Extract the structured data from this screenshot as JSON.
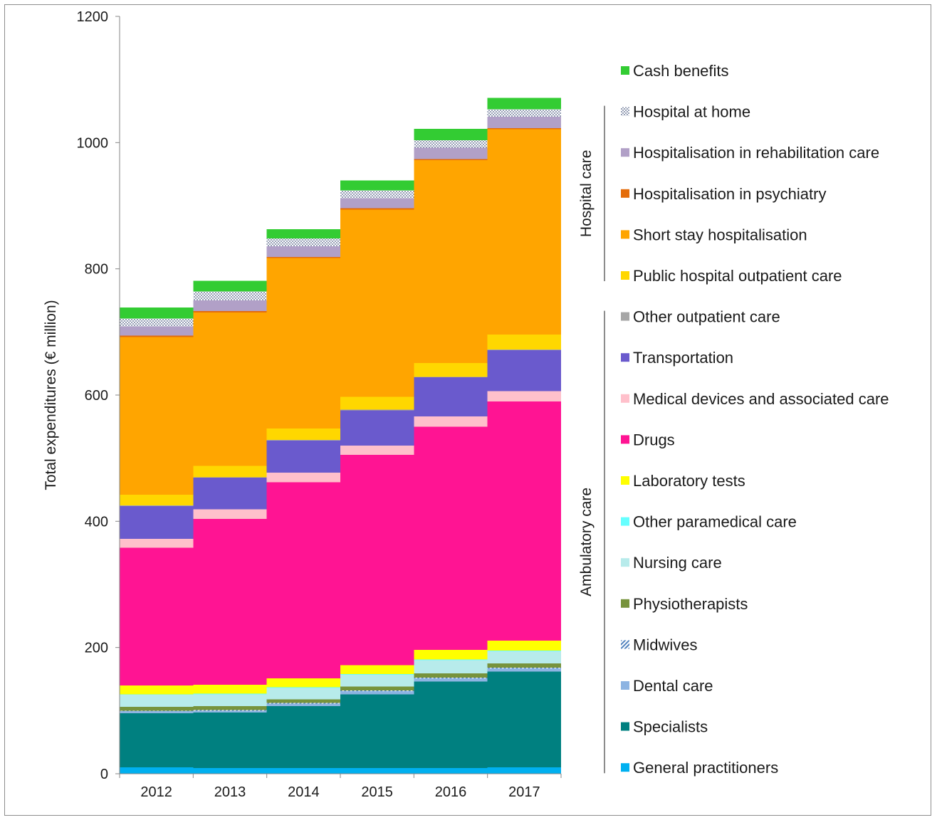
{
  "chart_data": {
    "type": "area",
    "title": "",
    "ylabel": "Total expenditures (€ million)",
    "xlabel": "",
    "ylim": [
      0,
      1200
    ],
    "yticks": [
      0,
      200,
      400,
      600,
      800,
      1000,
      1200
    ],
    "categories": [
      "2012",
      "2013",
      "2014",
      "2015",
      "2016",
      "2017"
    ],
    "grid": false,
    "legend_position": "right",
    "series": [
      {
        "name": "General practitioners",
        "color": "#00b0f0",
        "values": [
          10,
          9,
          9,
          9,
          9,
          10
        ]
      },
      {
        "name": "Specialists",
        "color": "#008080",
        "values": [
          86,
          88,
          98,
          117,
          137,
          152
        ]
      },
      {
        "name": "Dental care",
        "color": "#8db4e2",
        "values": [
          3,
          3,
          4,
          5,
          5,
          5
        ]
      },
      {
        "name": "Midwives",
        "color": "#4f81bd",
        "pattern": "hatch",
        "values": [
          1,
          1,
          1,
          1,
          1,
          1
        ]
      },
      {
        "name": "Physiotherapists",
        "color": "#77933c",
        "values": [
          6,
          6,
          6,
          6,
          7,
          7
        ]
      },
      {
        "name": "Nursing care",
        "color": "#b7ebeb",
        "values": [
          19,
          19,
          18,
          19,
          21,
          19
        ]
      },
      {
        "name": "Other paramedical care",
        "color": "#66ffff",
        "values": [
          1,
          1,
          1,
          1,
          1,
          1
        ]
      },
      {
        "name": "Laboratory tests",
        "color": "#ffff00",
        "values": [
          14,
          14,
          14,
          14,
          15,
          16
        ]
      },
      {
        "name": "Drugs",
        "color": "#ff1493",
        "values": [
          218,
          263,
          311,
          333,
          354,
          379
        ]
      },
      {
        "name": "Medical devices and associated care",
        "color": "#ffc0cb",
        "values": [
          14,
          15,
          15,
          15,
          16,
          16
        ]
      },
      {
        "name": "Transportation",
        "color": "#6a5acd",
        "values": [
          52,
          50,
          51,
          56,
          62,
          65
        ]
      },
      {
        "name": "Other outpatient care",
        "color": "#a6a6a6",
        "values": [
          1,
          1,
          1,
          1,
          1,
          1
        ]
      },
      {
        "name": "Public hospital outpatient care",
        "color": "#ffd700",
        "values": [
          17,
          18,
          18,
          20,
          22,
          24
        ]
      },
      {
        "name": "Short stay hospitalisation",
        "color": "#ffa500",
        "values": [
          250,
          243,
          270,
          297,
          321,
          325
        ]
      },
      {
        "name": "Hospitalisation in psychiatry",
        "color": "#e46c0a",
        "values": [
          2,
          2,
          2,
          2,
          2,
          2
        ]
      },
      {
        "name": "Hospitalisation in rehabilitation care",
        "color": "#b1a0c7",
        "values": [
          15,
          17,
          17,
          16,
          18,
          18
        ]
      },
      {
        "name": "Hospital at home",
        "color": "#cfd6e4",
        "pattern": "dots",
        "values": [
          12,
          14,
          12,
          12,
          12,
          12
        ]
      },
      {
        "name": "Cash benefits",
        "color": "#33cc33",
        "values": [
          18,
          17,
          15,
          16,
          18,
          18
        ]
      }
    ],
    "legend_order": [
      "Cash benefits",
      "Hospital at home",
      "Hospitalisation in rehabilitation care",
      "Hospitalisation in psychiatry",
      "Short stay hospitalisation",
      "Public hospital outpatient care",
      "Other outpatient care",
      "Transportation",
      "Medical devices and associated care",
      "Drugs",
      "Laboratory tests",
      "Other paramedical care",
      "Nursing care",
      "Physiotherapists",
      "Midwives",
      "Dental care",
      "Specialists",
      "General practitioners"
    ],
    "groups": [
      {
        "label": "Hospital care",
        "first": "Hospital at home",
        "last": "Public hospital outpatient care"
      },
      {
        "label": "Ambulatory care",
        "first": "Other outpatient care",
        "last": "General practitioners"
      }
    ]
  }
}
